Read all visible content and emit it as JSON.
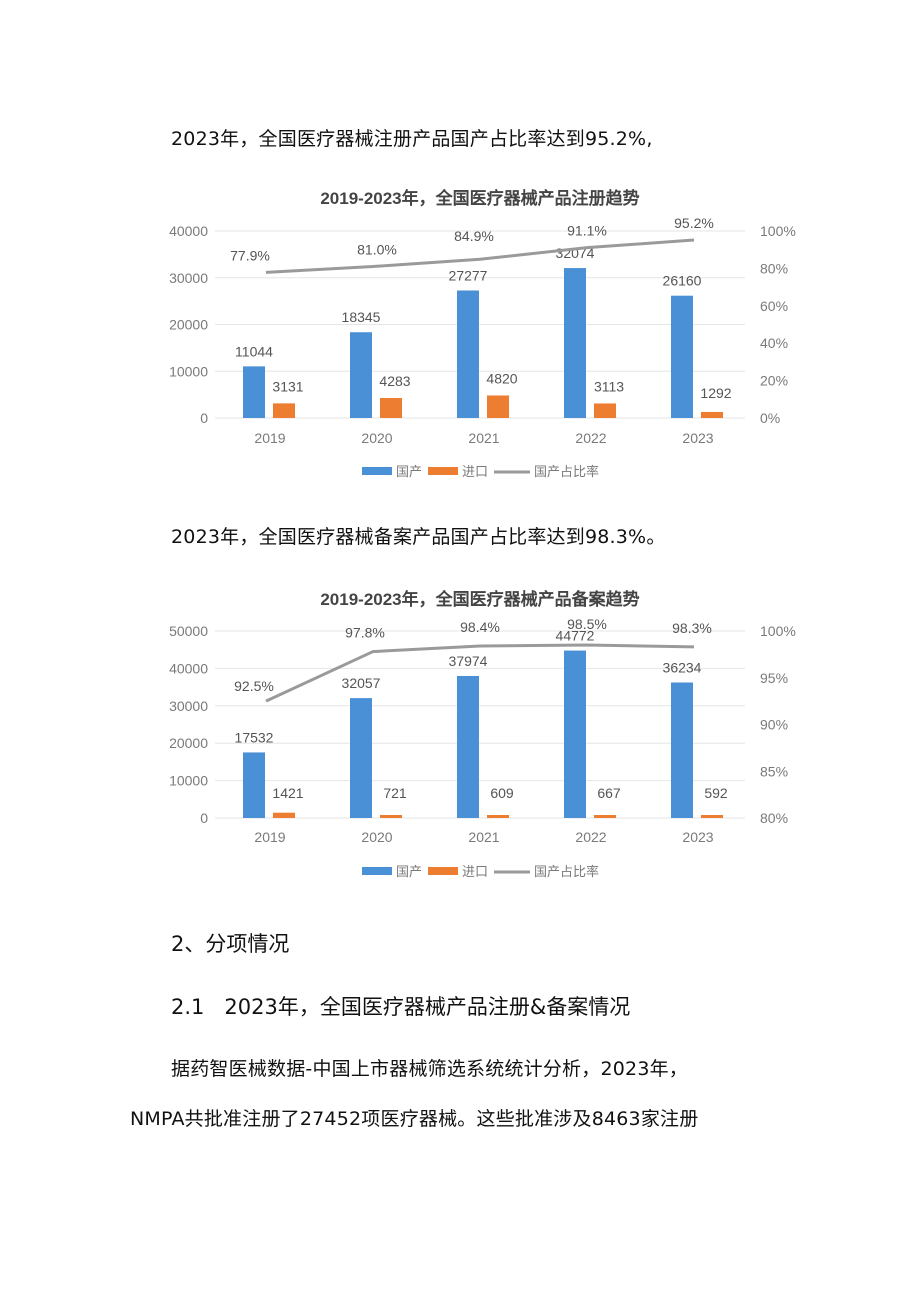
{
  "document": {
    "para1": "2023年，全国医疗器械注册产品国产占比率达到95.2%,",
    "para2": "2023年，全国医疗器械备案产品国产占比率达到98.3%。",
    "heading2": "2、分项情况",
    "heading2_1": "2.1   2023年，全国医疗器械产品注册&备案情况",
    "para3": "据药智医械数据-中国上市器械筛选系统统计分析，2023年，",
    "para4": "NMPA共批准注册了27452项医疗器械。这些批准涉及8463家注册"
  },
  "colors": {
    "domestic": "#4a90d6",
    "import": "#ed7d31",
    "ratio_line": "#9a9a9a",
    "grid": "#e6e6e6",
    "axis_text": "#7a7a7a",
    "label_text": "#555555"
  },
  "chart_data": [
    {
      "type": "bar",
      "title": "2019-2023年，全国医疗器械产品注册趋势",
      "categories": [
        "2019",
        "2020",
        "2021",
        "2022",
        "2023"
      ],
      "series": [
        {
          "name": "国产",
          "type": "bar",
          "axis": "left",
          "values": [
            11044,
            18345,
            27277,
            32074,
            26160
          ]
        },
        {
          "name": "进口",
          "type": "bar",
          "axis": "left",
          "values": [
            3131,
            4283,
            4820,
            3113,
            1292
          ]
        },
        {
          "name": "国产占比率",
          "type": "line",
          "axis": "right",
          "values": [
            77.9,
            81.0,
            84.9,
            91.1,
            95.2
          ],
          "labels": [
            "77.9%",
            "81.0%",
            "84.9%",
            "91.1%",
            "95.2%"
          ]
        }
      ],
      "left_axis": {
        "ticks": [
          "0",
          "10000",
          "20000",
          "30000",
          "40000"
        ],
        "ylim": [
          0,
          40000
        ]
      },
      "right_axis": {
        "ticks": [
          "0%",
          "20%",
          "40%",
          "60%",
          "80%",
          "100%"
        ],
        "ylim": [
          0,
          100
        ]
      },
      "legend": [
        "国产",
        "进口",
        "国产占比率"
      ],
      "legend_position": "bottom",
      "grid": true
    },
    {
      "type": "bar",
      "title": "2019-2023年，全国医疗器械产品备案趋势",
      "categories": [
        "2019",
        "2020",
        "2021",
        "2022",
        "2023"
      ],
      "series": [
        {
          "name": "国产",
          "type": "bar",
          "axis": "left",
          "values": [
            17532,
            32057,
            37974,
            44772,
            36234
          ]
        },
        {
          "name": "进口",
          "type": "bar",
          "axis": "left",
          "values": [
            1421,
            721,
            609,
            667,
            592
          ]
        },
        {
          "name": "国产占比率",
          "type": "line",
          "axis": "right",
          "values": [
            92.5,
            97.8,
            98.4,
            98.5,
            98.3
          ],
          "labels": [
            "92.5%",
            "97.8%",
            "98.4%",
            "98.5%",
            "98.3%"
          ]
        }
      ],
      "left_axis": {
        "ticks": [
          "0",
          "10000",
          "20000",
          "30000",
          "40000",
          "50000"
        ],
        "ylim": [
          0,
          50000
        ]
      },
      "right_axis": {
        "ticks": [
          "80%",
          "85%",
          "90%",
          "95%",
          "100%"
        ],
        "ylim": [
          80,
          100
        ]
      },
      "legend": [
        "国产",
        "进口",
        "国产占比率"
      ],
      "legend_position": "bottom",
      "grid": true
    }
  ]
}
